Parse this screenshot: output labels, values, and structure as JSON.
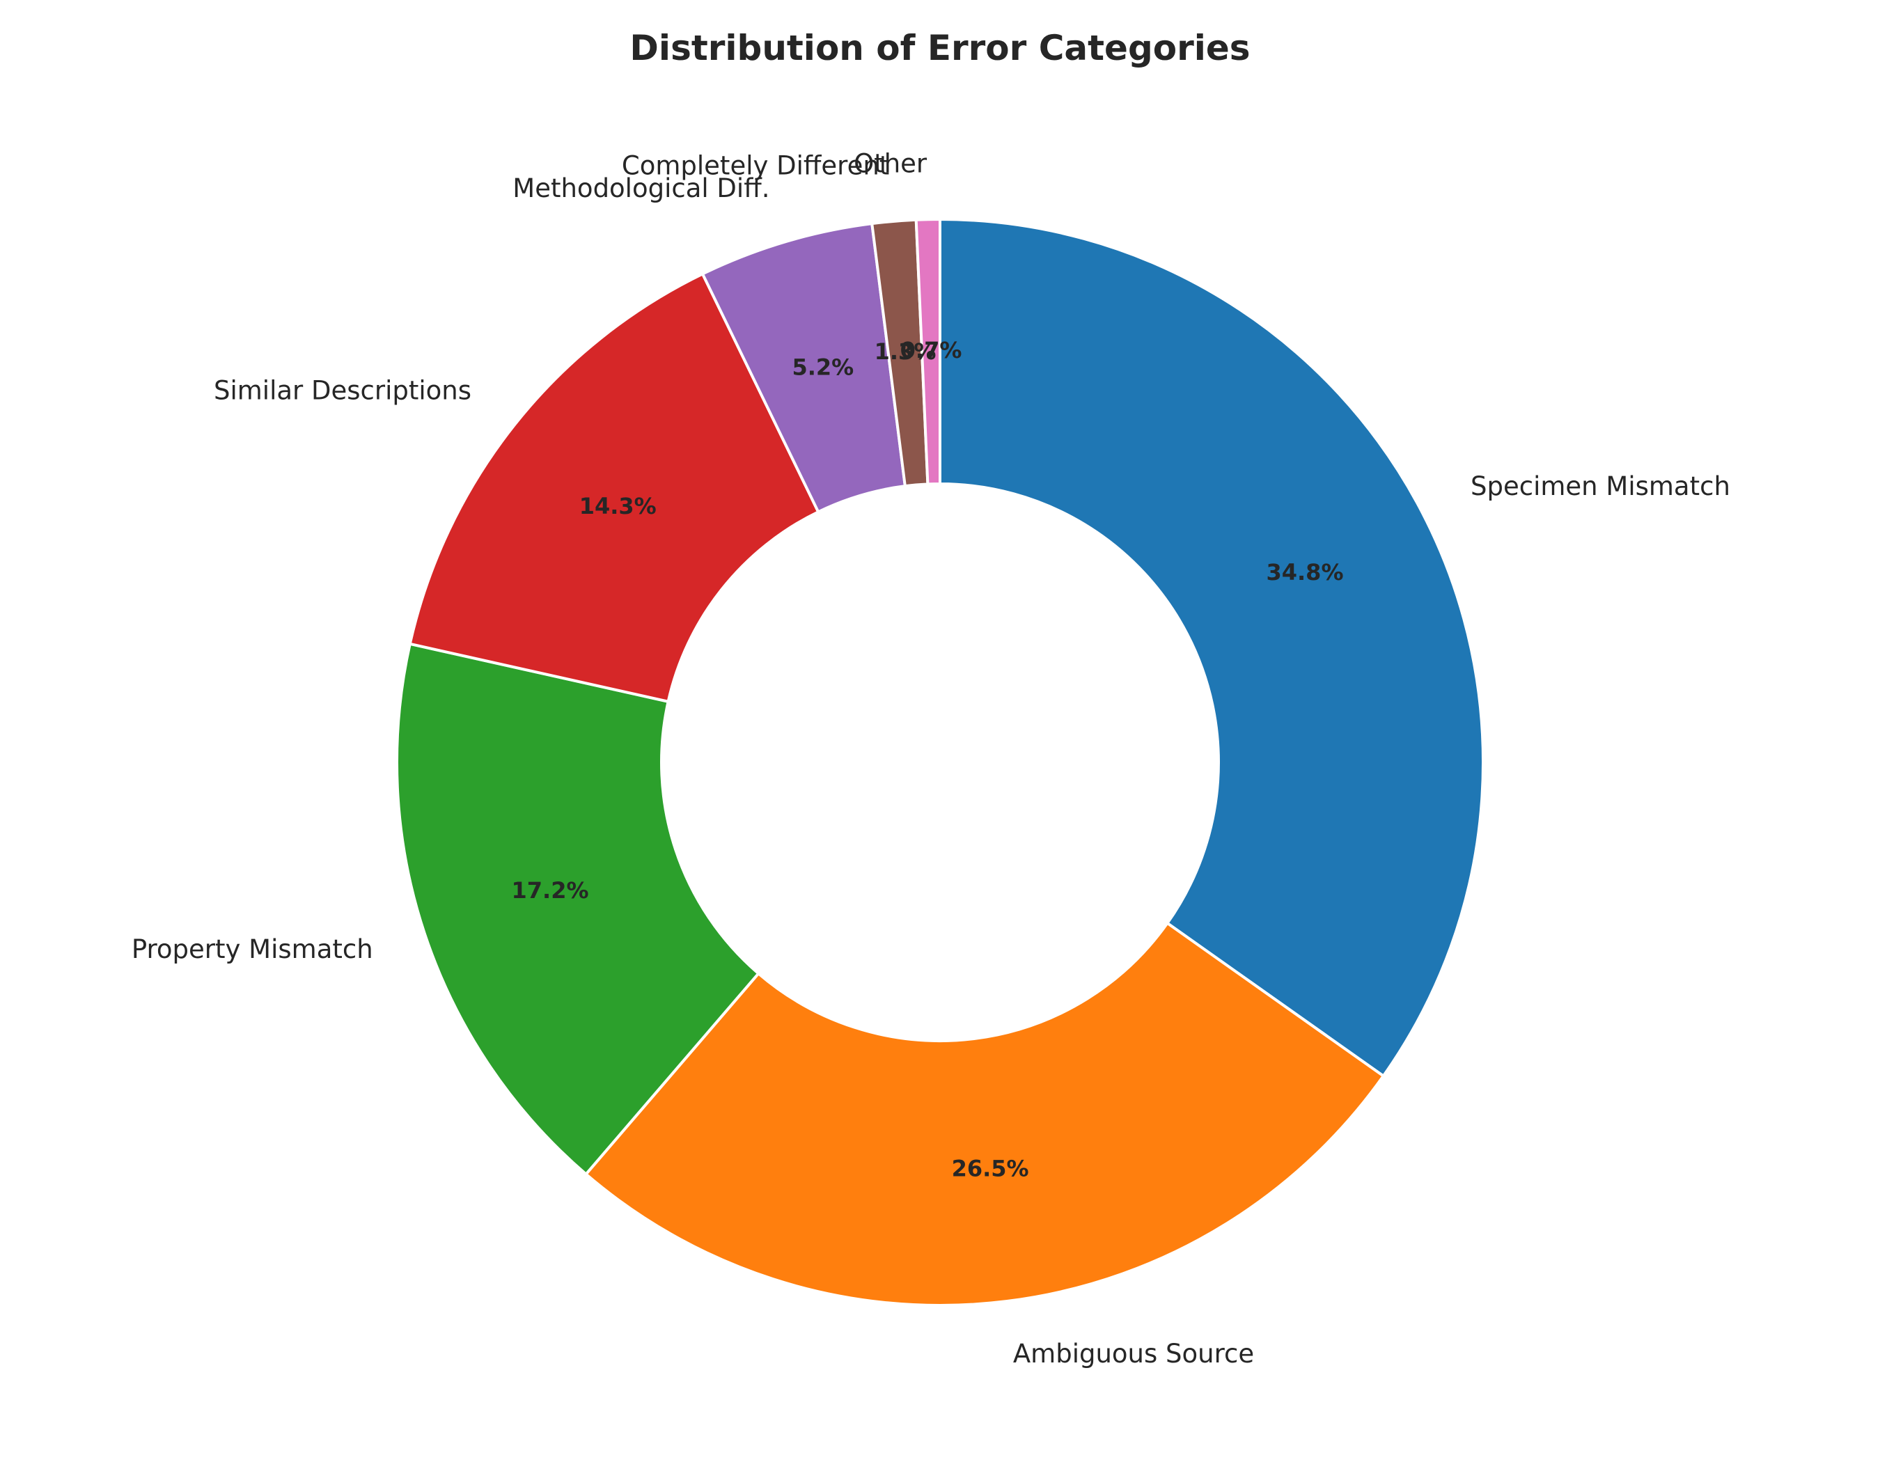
{
  "chart_data": {
    "type": "pie",
    "title": "Distribution of Error Categories",
    "donut": true,
    "start_angle_deg": 90,
    "direction": "clockwise",
    "slices": [
      {
        "label": "Specimen Mismatch",
        "value": 34.8,
        "pct_label": "34.8%",
        "color": "#1f77b4"
      },
      {
        "label": "Ambiguous Source",
        "value": 26.5,
        "pct_label": "26.5%",
        "color": "#ff7f0e"
      },
      {
        "label": "Property Mismatch",
        "value": 17.2,
        "pct_label": "17.2%",
        "color": "#2ca02c"
      },
      {
        "label": "Similar Descriptions",
        "value": 14.3,
        "pct_label": "14.3%",
        "color": "#d62728"
      },
      {
        "label": "Methodological Diff.",
        "value": 5.2,
        "pct_label": "5.2%",
        "color": "#9467bd"
      },
      {
        "label": "Completely Different",
        "value": 1.3,
        "pct_label": "1.3%",
        "color": "#8c564b"
      },
      {
        "label": "Other",
        "value": 0.7,
        "pct_label": "0.7%",
        "color": "#e377c2"
      }
    ]
  }
}
